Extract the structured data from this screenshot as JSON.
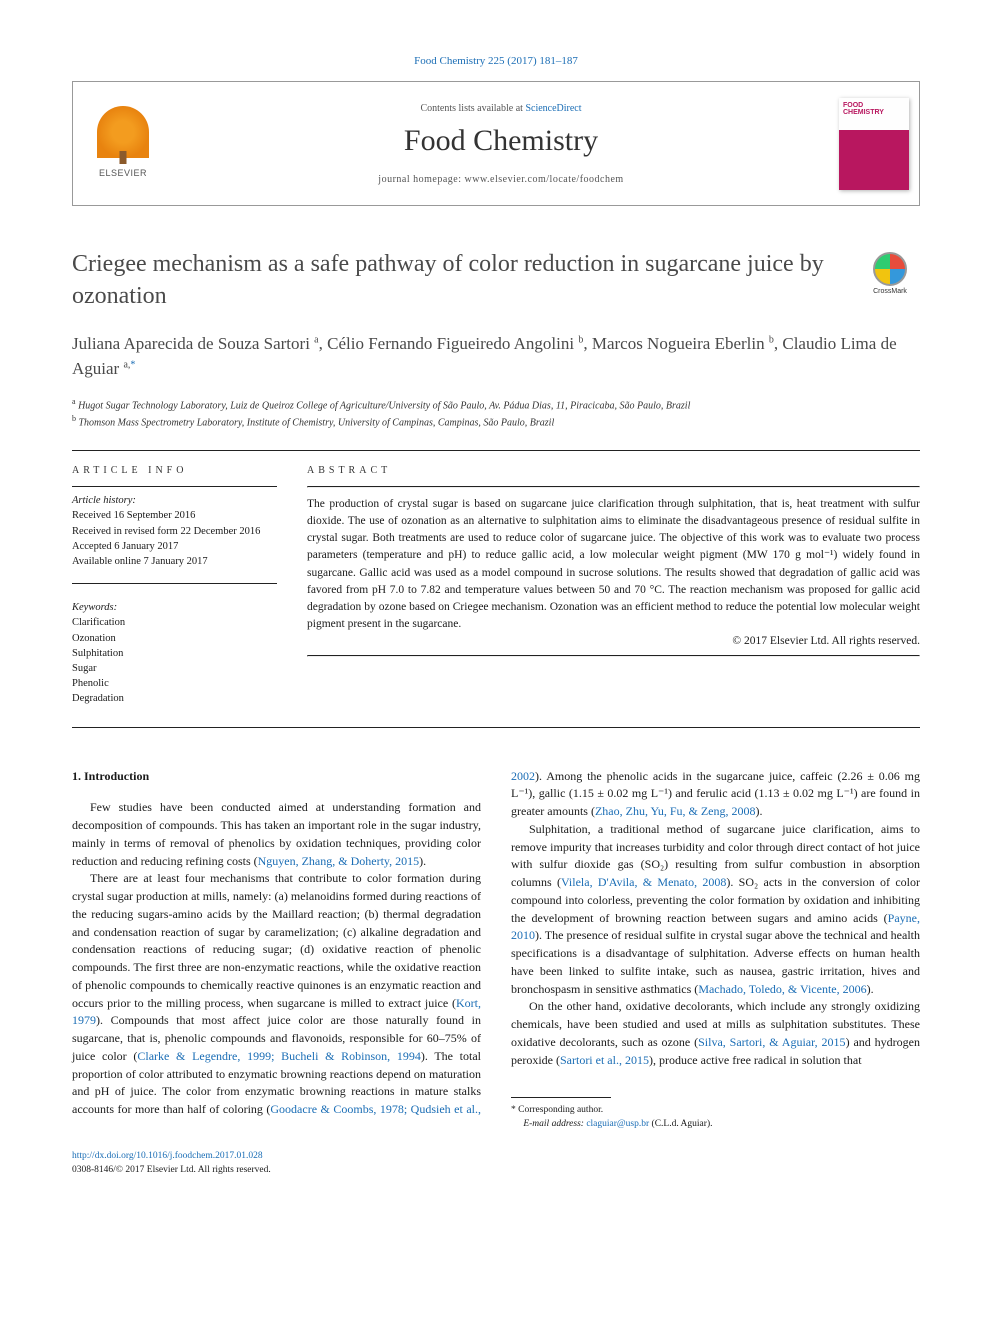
{
  "citation": "Food Chemistry 225 (2017) 181–187",
  "header": {
    "contents_prefix": "Contents lists available at ",
    "contents_link": "ScienceDirect",
    "journal": "Food Chemistry",
    "homepage_prefix": "journal homepage: ",
    "homepage": "www.elsevier.com/locate/foodchem",
    "publisher": "ELSEVIER",
    "cover_text": "FOOD CHEMISTRY"
  },
  "crossmark": "CrossMark",
  "title": "Criegee mechanism as a safe pathway of color reduction in sugarcane juice by ozonation",
  "authors_html": "Juliana Aparecida de Souza Sartori <sup>a</sup>, Célio Fernando Figueiredo Angolini <sup>b</sup>, Marcos Nogueira Eberlin <sup>b</sup>, Claudio Lima de Aguiar <sup>a,</sup><sup class='corr'>*</sup>",
  "affiliations": {
    "a": "Hugot Sugar Technology Laboratory, Luiz de Queiroz College of Agriculture/University of São Paulo, Av. Pádua Dias, 11, Piracicaba, São Paulo, Brazil",
    "b": "Thomson Mass Spectrometry Laboratory, Institute of Chemistry, University of Campinas, Campinas, São Paulo, Brazil"
  },
  "info": {
    "label": "article info",
    "history_label": "Article history:",
    "history": [
      "Received 16 September 2016",
      "Received in revised form 22 December 2016",
      "Accepted 6 January 2017",
      "Available online 7 January 2017"
    ],
    "keywords_label": "Keywords:",
    "keywords": [
      "Clarification",
      "Ozonation",
      "Sulphitation",
      "Sugar",
      "Phenolic",
      "Degradation"
    ]
  },
  "abstract": {
    "label": "abstract",
    "text": "The production of crystal sugar is based on sugarcane juice clarification through sulphitation, that is, heat treatment with sulfur dioxide. The use of ozonation as an alternative to sulphitation aims to eliminate the disadvantageous presence of residual sulfite in crystal sugar. Both treatments are used to reduce color of sugarcane juice. The objective of this work was to evaluate two process parameters (temperature and pH) to reduce gallic acid, a low molecular weight pigment (MW 170 g mol⁻¹) widely found in sugarcane. Gallic acid was used as a model compound in sucrose solutions. The results showed that degradation of gallic acid was favored from pH 7.0 to 7.82 and temperature values between 50 and 70 °C. The reaction mechanism was proposed for gallic acid degradation by ozone based on Criegee mechanism. Ozonation was an efficient method to reduce the potential low molecular weight pigment present in the sugarcane.",
    "copyright": "© 2017 Elsevier Ltd. All rights reserved."
  },
  "body": {
    "heading": "1. Introduction",
    "p1": "Few studies have been conducted aimed at understanding formation and decomposition of compounds. This has taken an important role in the sugar industry, mainly in terms of removal of phenolics by oxidation techniques, providing color reduction and reducing refining costs (",
    "r1": "Nguyen, Zhang, & Doherty, 2015",
    "p1b": ").",
    "p2a": "There are at least four mechanisms that contribute to color formation during crystal sugar production at mills, namely: (a) melanoidins formed during reactions of the reducing sugars-amino acids by the Maillard reaction; (b) thermal degradation and condensation reaction of sugar by caramelization; (c) alkaline degradation and condensation reactions of reducing sugar; (d) oxidative reaction of phenolic compounds. The first three are non-enzymatic reactions, while the oxidative reaction of phenolic compounds to chemically reactive quinones is an enzymatic reaction and occurs prior to the milling process, when sugarcane is milled to extract juice (",
    "r2": "Kort, 1979",
    "p2b": "). Compounds that most affect juice color are those naturally found in sugarcane, that is, phenolic compounds and flavonoids, responsible for 60–75% of juice color (",
    "r3": "Clarke & Legendre, 1999; Bucheli & Robinson, 1994",
    "p2c": "). The total proportion of color attributed to enzymatic browning reactions ",
    "p3a": "depend on maturation and pH of juice. The color from enzymatic browning reactions in mature stalks accounts for more than half of coloring (",
    "r4": "Goodacre & Coombs, 1978; Qudsieh et al., 2002",
    "p3b": "). Among the phenolic acids in the sugarcane juice, caffeic (2.26 ± 0.06 mg L⁻¹), gallic (1.15 ± 0.02 mg L⁻¹) and ferulic acid (1.13 ± 0.02 mg L⁻¹) are found in greater amounts (",
    "r5": "Zhao, Zhu, Yu, Fu, & Zeng, 2008",
    "p3c": ").",
    "p4a": "Sulphitation, a traditional method of sugarcane juice clarification, aims to remove impurity that increases turbidity and color through direct contact of hot juice with sulfur dioxide gas (SO₂) resulting from sulfur combustion in absorption columns (",
    "r6": "Vilela, D'Avila, & Menato, 2008",
    "p4b": "). SO₂ acts in the conversion of color compound into colorless, preventing the color formation by oxidation and inhibiting the development of browning reaction between sugars and amino acids (",
    "r7": "Payne, 2010",
    "p4c": "). The presence of residual sulfite in crystal sugar above the technical and health specifications is a disadvantage of sulphitation. Adverse effects on human health have been linked to sulfite intake, such as nausea, gastric irritation, hives and bronchospasm in sensitive asthmatics (",
    "r8": "Machado, Toledo, & Vicente, 2006",
    "p4d": ").",
    "p5a": "On the other hand, oxidative decolorants, which include any strongly oxidizing chemicals, have been studied and used at mills as sulphitation substitutes. These oxidative decolorants, such as ozone (",
    "r9": "Silva, Sartori, & Aguiar, 2015",
    "p5b": ") and hydrogen peroxide (",
    "r10": "Sartori et al., 2015",
    "p5c": "), produce active free radical in solution that"
  },
  "footnote": {
    "corr_label": "* Corresponding author.",
    "email_label": "E-mail address:",
    "email": "claguiar@usp.br",
    "email_who": "(C.L.d. Aguiar)."
  },
  "bottom": {
    "doi": "http://dx.doi.org/10.1016/j.foodchem.2017.01.028",
    "issn": "0308-8146/© 2017 Elsevier Ltd. All rights reserved."
  }
}
